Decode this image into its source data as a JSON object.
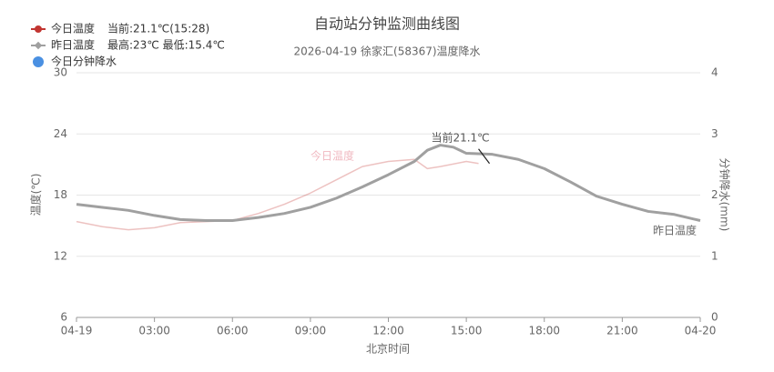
{
  "chart_data": {
    "type": "line",
    "title": "自动站分钟监测曲线图",
    "subtitle": "2026-04-19 徐家汇(58367)温度降水",
    "x_label": "北京时间",
    "y_label": "温度(℃)",
    "y2_label": "分钟降水(mm)",
    "xlim": [
      0,
      24
    ],
    "xticks": [
      {
        "value": 0,
        "label": "04-19"
      },
      {
        "value": 3,
        "label": "03:00"
      },
      {
        "value": 6,
        "label": "06:00"
      },
      {
        "value": 9,
        "label": "09:00"
      },
      {
        "value": 12,
        "label": "12:00"
      },
      {
        "value": 15,
        "label": "15:00"
      },
      {
        "value": 18,
        "label": "18:00"
      },
      {
        "value": 21,
        "label": "21:00"
      },
      {
        "value": 24,
        "label": "04-20"
      }
    ],
    "ylim": [
      6,
      30
    ],
    "yticks": [
      6,
      12,
      18,
      24,
      30
    ],
    "y2lim": [
      0,
      4
    ],
    "y2ticks": [
      0,
      1,
      2,
      3,
      4
    ],
    "grid": true,
    "annotation": "当前21.1℃",
    "series": [
      {
        "name": "今日温度",
        "note": "当前:21.1℃(15:28)",
        "color": "#c23531",
        "x": [
          0,
          1,
          2,
          3,
          4,
          5,
          6,
          7,
          8,
          9,
          10,
          11,
          12,
          13,
          13.5,
          14,
          15,
          15.47
        ],
        "values": [
          15.4,
          14.9,
          14.6,
          14.8,
          15.3,
          15.4,
          15.5,
          16.2,
          17.1,
          18.2,
          19.5,
          20.8,
          21.3,
          21.5,
          20.6,
          20.8,
          21.3,
          21.1
        ]
      },
      {
        "name": "昨日温度",
        "note": "最高:23℃ 最低:15.4℃",
        "color": "#a0a0a0",
        "x": [
          0,
          1,
          2,
          3,
          4,
          5,
          6,
          7,
          8,
          9,
          10,
          11,
          12,
          13,
          13.5,
          14,
          14.5,
          15,
          16,
          17,
          18,
          19,
          20,
          21,
          22,
          23,
          24
        ],
        "values": [
          17.1,
          16.8,
          16.5,
          16.0,
          15.6,
          15.5,
          15.5,
          15.8,
          16.2,
          16.8,
          17.7,
          18.8,
          20.0,
          21.3,
          22.4,
          22.9,
          22.7,
          22.1,
          22.0,
          21.5,
          20.6,
          19.3,
          17.9,
          17.1,
          16.4,
          16.1,
          15.5
        ]
      },
      {
        "name": "今日分钟降水",
        "color": "#4a90e2",
        "axis": "y2",
        "x": [],
        "values": []
      }
    ]
  }
}
